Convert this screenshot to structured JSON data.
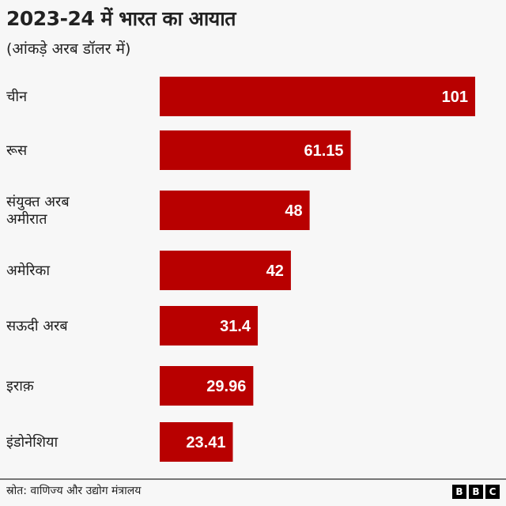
{
  "chart_data": {
    "type": "bar",
    "orientation": "horizontal",
    "title": "2023-24 में भारत का आयात",
    "subtitle": "(आंकड़े अरब डॉलर में)",
    "categories": [
      [
        "चीन"
      ],
      [
        "रूस"
      ],
      [
        "संयुक्त अरब",
        "अमीरात"
      ],
      [
        "अमेरिका"
      ],
      [
        "सऊदी अरब"
      ],
      [
        "इराक़"
      ],
      [
        "इंडोनेशिया"
      ]
    ],
    "values": [
      101,
      61.15,
      48,
      42,
      31.4,
      29.96,
      23.41
    ],
    "value_labels": [
      "101",
      "61.15",
      "48",
      "42",
      "31.4",
      "29.96",
      "23.41"
    ],
    "xlim": [
      0,
      101
    ],
    "grid": false,
    "bar_color": "#b80000",
    "label_color": "#ffffff"
  },
  "footer": {
    "source": "स्रोत: वाणिज्य और उद्योग मंत्रालय",
    "logo": [
      "B",
      "B",
      "C"
    ]
  }
}
